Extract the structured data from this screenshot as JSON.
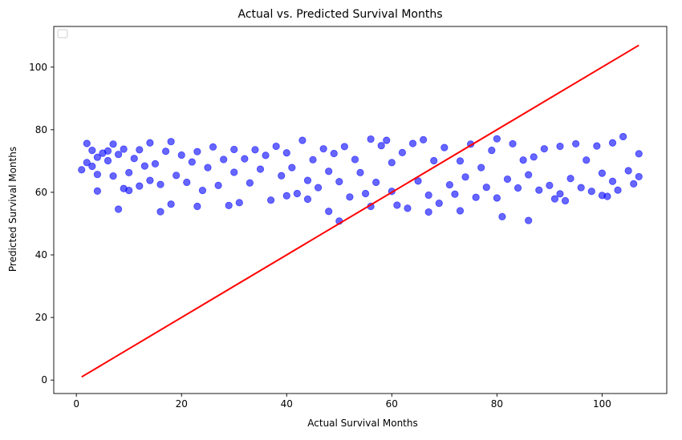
{
  "chart_data": {
    "type": "scatter",
    "title": "Actual vs. Predicted Survival Months",
    "xlabel": "Actual Survival Months",
    "ylabel": "Predicted Survival Months",
    "xlim": [
      -4.3,
      112.3
    ],
    "ylim": [
      -4.3,
      113.0
    ],
    "x_ticks": [
      0,
      20,
      40,
      60,
      80,
      100
    ],
    "y_ticks": [
      0,
      20,
      40,
      60,
      80,
      100
    ],
    "legend": "upper-left (empty)",
    "grid": false,
    "series": [
      {
        "kind": "scatter",
        "color": "#0000ff",
        "alpha": 0.6,
        "points": [
          [
            1,
            67.2
          ],
          [
            2,
            69.5
          ],
          [
            2,
            75.6
          ],
          [
            3,
            68.3
          ],
          [
            3,
            73.4
          ],
          [
            4,
            71.2
          ],
          [
            4,
            60.4
          ],
          [
            4,
            65.7
          ],
          [
            5,
            72.5
          ],
          [
            6,
            70.1
          ],
          [
            6,
            73.2
          ],
          [
            7,
            65.2
          ],
          [
            7,
            75.4
          ],
          [
            8,
            54.6
          ],
          [
            8,
            72.1
          ],
          [
            9,
            61.2
          ],
          [
            9,
            73.8
          ],
          [
            10,
            60.6
          ],
          [
            10,
            66.3
          ],
          [
            11,
            70.8
          ],
          [
            12,
            62.0
          ],
          [
            12,
            73.6
          ],
          [
            13,
            68.4
          ],
          [
            14,
            63.8
          ],
          [
            14,
            75.8
          ],
          [
            15,
            69.1
          ],
          [
            16,
            53.8
          ],
          [
            16,
            62.5
          ],
          [
            17,
            73.1
          ],
          [
            18,
            56.2
          ],
          [
            18,
            76.2
          ],
          [
            19,
            65.4
          ],
          [
            20,
            71.9
          ],
          [
            21,
            63.2
          ],
          [
            22,
            69.7
          ],
          [
            23,
            55.5
          ],
          [
            23,
            73.0
          ],
          [
            24,
            60.6
          ],
          [
            25,
            67.9
          ],
          [
            26,
            74.5
          ],
          [
            27,
            62.2
          ],
          [
            28,
            70.5
          ],
          [
            29,
            55.8
          ],
          [
            30,
            73.7
          ],
          [
            30,
            66.4
          ],
          [
            31,
            56.7
          ],
          [
            32,
            70.7
          ],
          [
            33,
            63.0
          ],
          [
            34,
            73.6
          ],
          [
            35,
            67.4
          ],
          [
            36,
            71.8
          ],
          [
            37,
            57.5
          ],
          [
            38,
            74.7
          ],
          [
            39,
            65.3
          ],
          [
            40,
            58.9
          ],
          [
            40,
            72.6
          ],
          [
            41,
            67.9
          ],
          [
            42,
            59.6
          ],
          [
            43,
            76.6
          ],
          [
            44,
            63.8
          ],
          [
            44,
            57.8
          ],
          [
            45,
            70.4
          ],
          [
            46,
            61.5
          ],
          [
            47,
            73.9
          ],
          [
            48,
            53.9
          ],
          [
            48,
            66.7
          ],
          [
            49,
            72.4
          ],
          [
            50,
            50.8
          ],
          [
            50,
            63.4
          ],
          [
            51,
            74.6
          ],
          [
            52,
            58.5
          ],
          [
            53,
            70.5
          ],
          [
            54,
            66.3
          ],
          [
            55,
            59.6
          ],
          [
            56,
            55.5
          ],
          [
            56,
            77.0
          ],
          [
            57,
            63.2
          ],
          [
            58,
            74.9
          ],
          [
            59,
            76.6
          ],
          [
            60,
            60.3
          ],
          [
            60,
            69.5
          ],
          [
            61,
            55.9
          ],
          [
            62,
            72.7
          ],
          [
            63,
            54.9
          ],
          [
            64,
            75.6
          ],
          [
            65,
            63.6
          ],
          [
            66,
            76.8
          ],
          [
            67,
            53.7
          ],
          [
            67,
            59.1
          ],
          [
            68,
            70.1
          ],
          [
            69,
            56.5
          ],
          [
            70,
            74.3
          ],
          [
            71,
            62.4
          ],
          [
            72,
            59.4
          ],
          [
            73,
            54.1
          ],
          [
            73,
            70.0
          ],
          [
            74,
            64.9
          ],
          [
            75,
            75.4
          ],
          [
            76,
            58.4
          ],
          [
            77,
            67.9
          ],
          [
            78,
            61.6
          ],
          [
            79,
            73.4
          ],
          [
            80,
            58.2
          ],
          [
            80,
            77.1
          ],
          [
            81,
            52.2
          ],
          [
            82,
            64.2
          ],
          [
            83,
            75.5
          ],
          [
            84,
            61.4
          ],
          [
            85,
            70.3
          ],
          [
            86,
            51.0
          ],
          [
            86,
            65.6
          ],
          [
            87,
            71.3
          ],
          [
            88,
            60.7
          ],
          [
            89,
            73.9
          ],
          [
            90,
            62.2
          ],
          [
            91,
            57.9
          ],
          [
            92,
            59.5
          ],
          [
            92,
            74.7
          ],
          [
            93,
            57.3
          ],
          [
            94,
            64.4
          ],
          [
            95,
            75.5
          ],
          [
            96,
            61.5
          ],
          [
            97,
            70.3
          ],
          [
            98,
            60.3
          ],
          [
            99,
            74.8
          ],
          [
            100,
            59.0
          ],
          [
            100,
            66.1
          ],
          [
            101,
            58.7
          ],
          [
            102,
            75.8
          ],
          [
            102,
            63.5
          ],
          [
            103,
            60.7
          ],
          [
            104,
            77.8
          ],
          [
            105,
            66.9
          ],
          [
            106,
            62.7
          ],
          [
            107,
            65.0
          ],
          [
            107,
            72.3
          ]
        ]
      },
      {
        "kind": "line",
        "color": "#ff0000",
        "points": [
          [
            1,
            1
          ],
          [
            107,
            107
          ]
        ]
      }
    ]
  }
}
